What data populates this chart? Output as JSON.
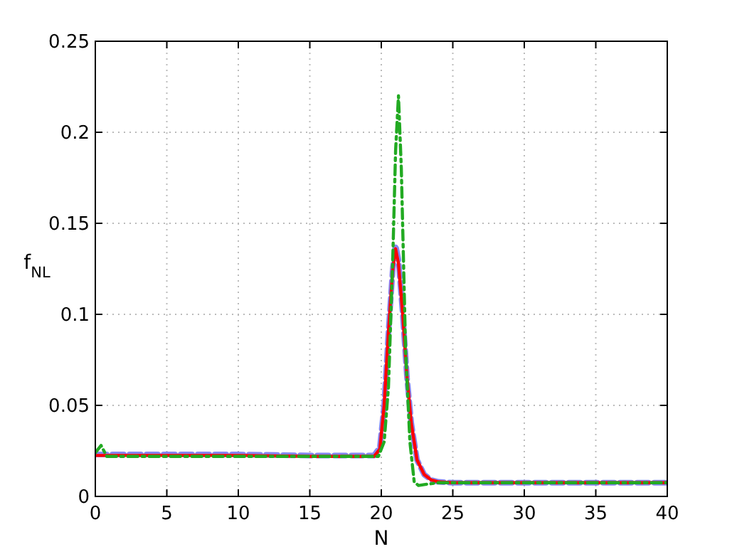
{
  "chart_data": {
    "type": "line",
    "xlabel": "N",
    "ylabel": "f$_{NL}$",
    "xlim": [
      0,
      40
    ],
    "ylim": [
      0,
      0.25
    ],
    "xticks": [
      0,
      5,
      10,
      15,
      20,
      25,
      30,
      35,
      40
    ],
    "yticks": [
      0,
      0.05,
      0.1,
      0.15,
      0.2,
      0.25
    ],
    "grid": true,
    "series": [
      {
        "color": "#6666ee",
        "line_style": "dashed",
        "x": [
          0,
          5,
          10,
          15,
          19.5,
          19.9,
          20.2,
          20.5,
          20.8,
          21,
          21.2,
          21.5,
          21.8,
          22.1,
          22.5,
          23,
          23.5,
          24,
          25,
          30,
          35,
          40
        ],
        "values": [
          0.023,
          0.023,
          0.023,
          0.0225,
          0.0225,
          0.027,
          0.05,
          0.09,
          0.125,
          0.138,
          0.13,
          0.1,
          0.065,
          0.04,
          0.02,
          0.012,
          0.009,
          0.008,
          0.0075,
          0.0075,
          0.0075,
          0.0075
        ]
      },
      {
        "color": "#ff0000",
        "line_style": "solid",
        "x": [
          0,
          5,
          10,
          15,
          19.5,
          19.9,
          20.2,
          20.5,
          20.8,
          21,
          21.2,
          21.5,
          21.8,
          22.1,
          22.5,
          23,
          23.5,
          24,
          25,
          30,
          35,
          40
        ],
        "values": [
          0.0225,
          0.0225,
          0.0225,
          0.022,
          0.022,
          0.026,
          0.05,
          0.09,
          0.125,
          0.136,
          0.128,
          0.1,
          0.065,
          0.04,
          0.02,
          0.012,
          0.009,
          0.008,
          0.0075,
          0.0075,
          0.0075,
          0.0075
        ]
      },
      {
        "color": "#22aa22",
        "line_style": "dashdot",
        "x": [
          0,
          0.4,
          0.8,
          5,
          10,
          15,
          19.8,
          20.2,
          20.5,
          20.8,
          21,
          21.2,
          21.4,
          21.7,
          22,
          22.3,
          22.6,
          23,
          24,
          25,
          30,
          35,
          40
        ],
        "values": [
          0.024,
          0.028,
          0.022,
          0.022,
          0.022,
          0.022,
          0.022,
          0.03,
          0.06,
          0.13,
          0.19,
          0.22,
          0.18,
          0.08,
          0.03,
          0.008,
          0.006,
          0.0065,
          0.0075,
          0.0075,
          0.0075,
          0.0075,
          0.0075
        ]
      }
    ]
  }
}
